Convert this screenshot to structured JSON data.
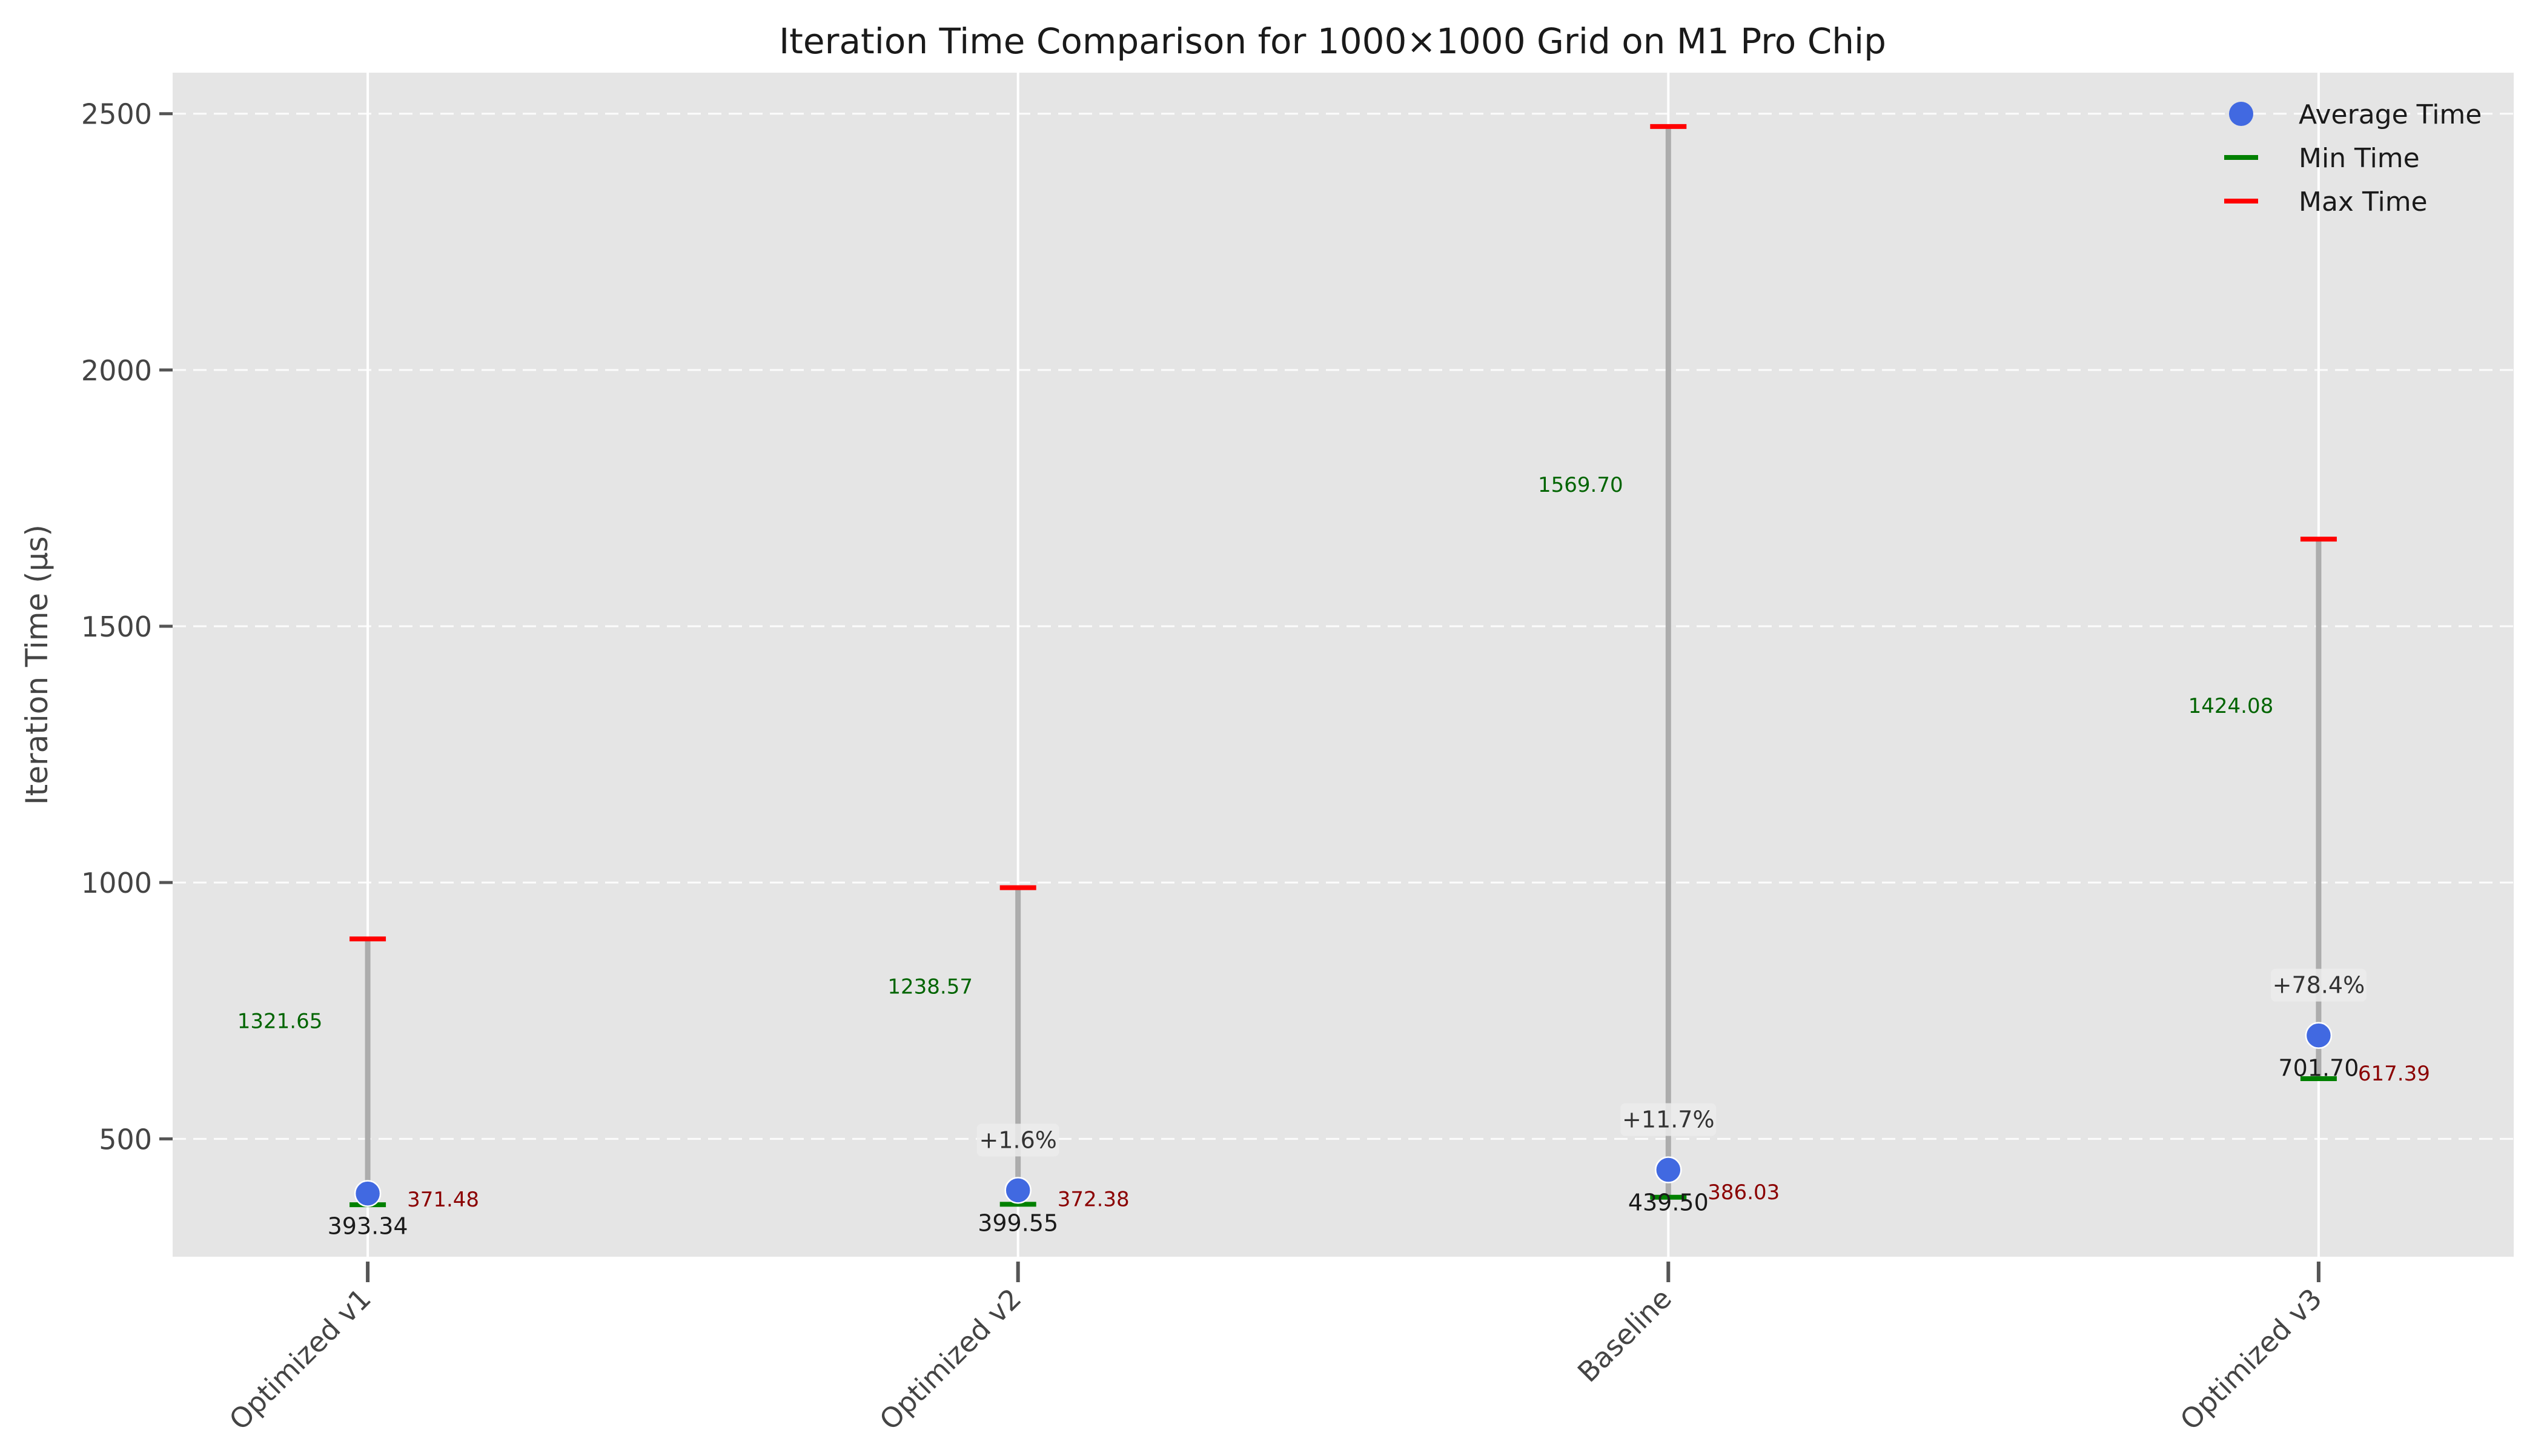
{
  "chart_data": {
    "type": "scatter",
    "title": "Iteration Time Comparison for 1000×1000 Grid on M1 Pro Chip",
    "xlabel": "",
    "ylabel": "Iteration Time (μs)",
    "ylim": [
      270,
      2580
    ],
    "yticks": [
      500,
      1000,
      1500,
      2000,
      2500
    ],
    "grid": true,
    "legend_position": "top-right",
    "categories": [
      "Optimized v1",
      "Optimized v2",
      "Baseline",
      "Optimized v3"
    ],
    "average": [
      393.34,
      399.55,
      439.5,
      701.7
    ],
    "min": [
      371.48,
      372.38,
      386.03,
      617.39
    ],
    "max": [
      890,
      990,
      2475,
      1670
    ],
    "range_labels": [
      "1321.65",
      "1238.57",
      "1569.70",
      "1424.08"
    ],
    "average_labels": [
      "393.34",
      "399.55",
      "439.50",
      "701.70"
    ],
    "min_labels": [
      "371.48",
      "372.38",
      "386.03",
      "617.39"
    ],
    "pct_labels": [
      "",
      "+1.6%",
      "+11.7%",
      "+78.4%"
    ],
    "legend": [
      {
        "name": "Average Time",
        "marker": "circle",
        "color": "#4169e1"
      },
      {
        "name": "Min Time",
        "marker": "hline",
        "color": "#008000"
      },
      {
        "name": "Max Time",
        "marker": "hline",
        "color": "#ff0000"
      }
    ],
    "colors": {
      "average": "#4169e1",
      "min": "#008000",
      "max": "#ff0000",
      "range_line": "#a9a9a9",
      "range_text": "#006400",
      "min_text": "#8b0000",
      "plot_bg": "#e5e5e5",
      "grid": "#ffffff"
    }
  }
}
